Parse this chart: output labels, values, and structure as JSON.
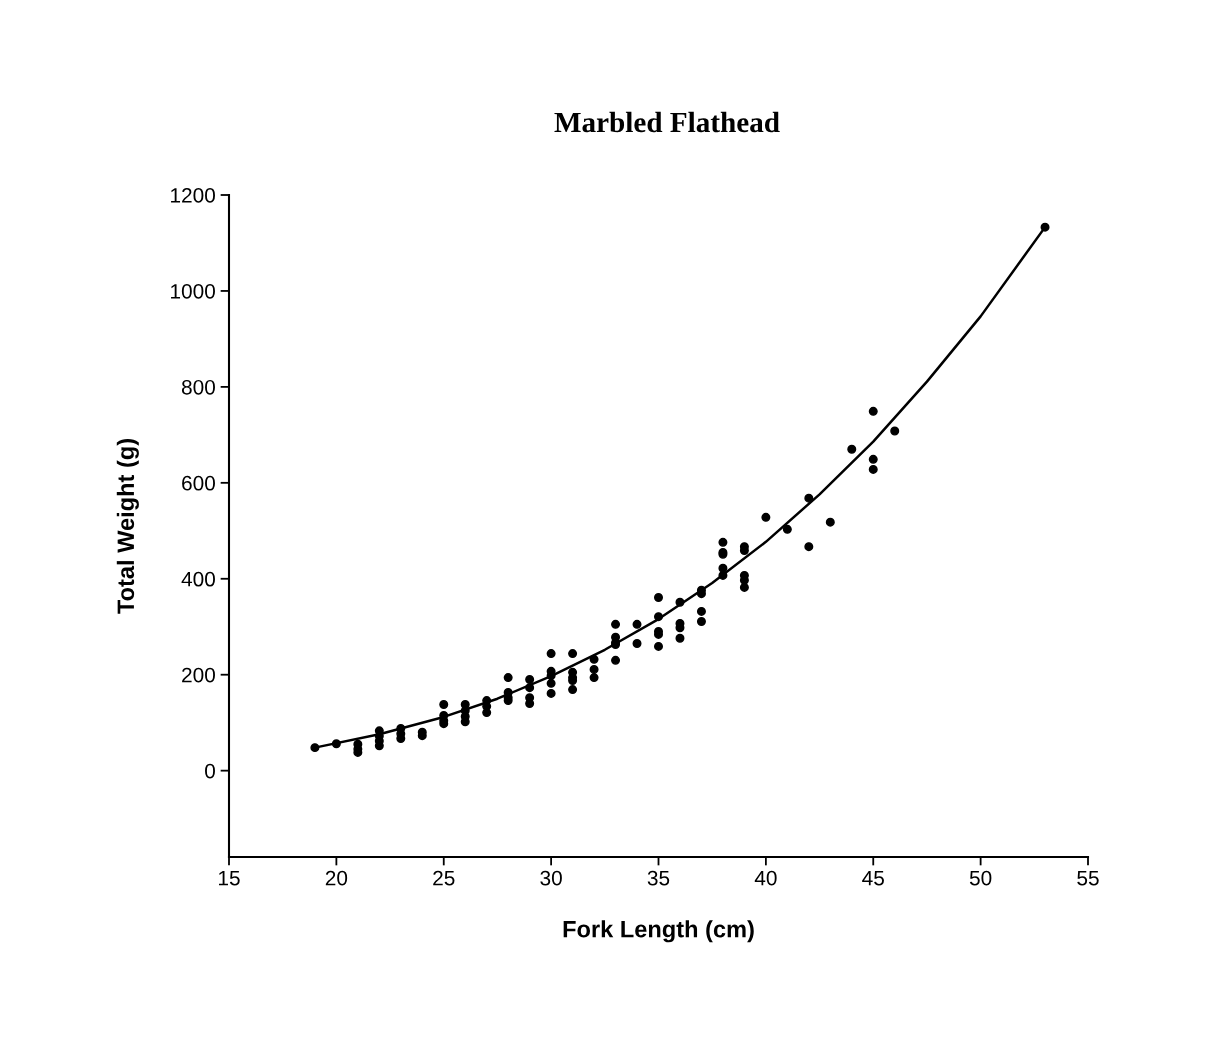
{
  "chart_data": {
    "type": "scatter",
    "title": "Marbled Flathead",
    "xlabel": "Fork Length (cm)",
    "ylabel": "Total Weight (g)",
    "xlim": [
      15,
      55
    ],
    "xticks": [
      15,
      20,
      25,
      30,
      35,
      40,
      45,
      50,
      55
    ],
    "ylim": [
      -180,
      1200
    ],
    "yticks": [
      0,
      200,
      400,
      600,
      800,
      1000,
      1200
    ],
    "grid": false,
    "legend": false,
    "marker": "circle",
    "series": [
      {
        "color": "#000000",
        "x": [
          19,
          20,
          21,
          21,
          21,
          22,
          22,
          22,
          22,
          23,
          23,
          23,
          24,
          24,
          25,
          25,
          25,
          25,
          26,
          26,
          26,
          26,
          27,
          27,
          27,
          28,
          28,
          28,
          28,
          29,
          29,
          29,
          29,
          30,
          30,
          30,
          30,
          30,
          31,
          31,
          31,
          31,
          31,
          32,
          32,
          32,
          33,
          33,
          33,
          33,
          33,
          34,
          34,
          35,
          35,
          35,
          35,
          35,
          36,
          36,
          36,
          36,
          37,
          37,
          37,
          37,
          38,
          38,
          38,
          38,
          38,
          39,
          39,
          39,
          39,
          39,
          40,
          41,
          42,
          42,
          43,
          44,
          45,
          45,
          45,
          46,
          53
        ],
        "values": [
          48,
          56,
          55,
          45,
          38,
          83,
          72,
          62,
          52,
          88,
          77,
          67,
          80,
          73,
          138,
          115,
          104,
          98,
          138,
          125,
          113,
          102,
          146,
          134,
          121,
          194,
          163,
          152,
          146,
          190,
          173,
          152,
          140,
          244,
          207,
          198,
          182,
          161,
          244,
          205,
          194,
          188,
          169,
          232,
          211,
          194,
          305,
          278,
          267,
          263,
          230,
          305,
          265,
          361,
          321,
          290,
          284,
          259,
          351,
          307,
          298,
          276,
          376,
          369,
          332,
          311,
          476,
          455,
          451,
          422,
          407,
          467,
          459,
          407,
          397,
          382,
          528,
          503,
          568,
          467,
          518,
          670,
          749,
          649,
          628,
          708,
          1133
        ]
      },
      {
        "type": "line",
        "color": "#000000",
        "marker": "none",
        "x": [
          19,
          22,
          25,
          27.5,
          30,
          32.5,
          35,
          37.5,
          40,
          42.5,
          45,
          47.5,
          50,
          53
        ],
        "values": [
          48,
          76,
          112,
          150,
          197,
          252,
          316,
          391,
          477,
          576,
          686,
          811,
          947,
          1133
        ]
      }
    ]
  }
}
